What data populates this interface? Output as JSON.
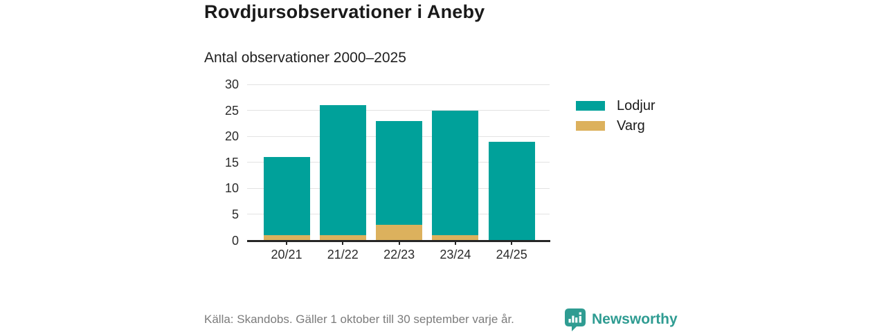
{
  "header": {
    "title": "Rovdjursobservationer i Aneby",
    "subtitle": "Antal observationer 2000–2025"
  },
  "chart_data": {
    "type": "bar",
    "stacked": true,
    "title": "Rovdjursobservationer i Aneby",
    "subtitle": "Antal observationer 2000–2025",
    "categories": [
      "20/21",
      "21/22",
      "22/23",
      "23/24",
      "24/25"
    ],
    "series": [
      {
        "name": "Lodjur",
        "color": "#00a19a",
        "values": [
          15,
          25,
          20,
          24,
          19
        ]
      },
      {
        "name": "Varg",
        "color": "#dcb15d",
        "values": [
          1,
          1,
          3,
          1,
          0
        ]
      }
    ],
    "stack_bottom_to_top": [
      "Varg",
      "Lodjur"
    ],
    "totals": [
      16,
      26,
      23,
      25,
      19
    ],
    "xlabel": "",
    "ylabel": "",
    "ylim": [
      0,
      30
    ],
    "yticks": [
      0,
      5,
      10,
      15,
      20,
      25,
      30
    ],
    "grid": "horizontal",
    "legend_position": "right"
  },
  "legend": {
    "items": [
      {
        "label": "Lodjur",
        "color": "#00a19a"
      },
      {
        "label": "Varg",
        "color": "#dcb15d"
      }
    ]
  },
  "footer": {
    "source": "Källa: Skandobs. Gäller 1 oktober till 30 september varje år.",
    "brand": "Newsworthy",
    "brand_color": "#2f9c92"
  }
}
